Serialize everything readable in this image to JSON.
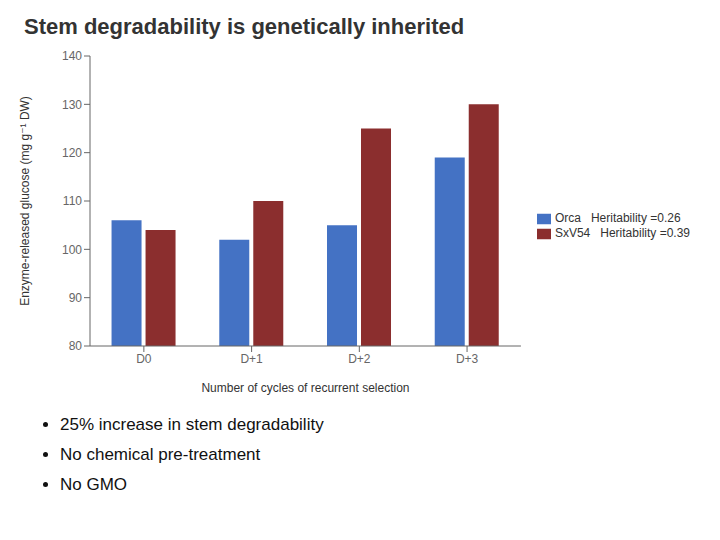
{
  "chart_data": {
    "type": "bar",
    "title": "Stem degradability is genetically inherited",
    "categories": [
      "D0",
      "D+1",
      "D+2",
      "D+3"
    ],
    "series": [
      {
        "name": "Orca   Heritability =0.26",
        "color": "#4472c4",
        "values": [
          106,
          102,
          105,
          119
        ]
      },
      {
        "name": "SxV54   Heritability =0.39",
        "color": "#8b2e2e",
        "values": [
          104,
          110,
          125,
          130
        ]
      }
    ],
    "xlabel": "Number of cycles of recurrent selection",
    "ylabel": "Enzyme-released glucose (mg g⁻¹ DW)",
    "ylim": [
      80,
      140
    ],
    "yticks": [
      80,
      90,
      100,
      110,
      120,
      130,
      140
    ],
    "grid": false,
    "legend": "right",
    "annotations": [
      "25% increase in stem degradability",
      "No chemical pre-treatment",
      "No GMO"
    ]
  }
}
